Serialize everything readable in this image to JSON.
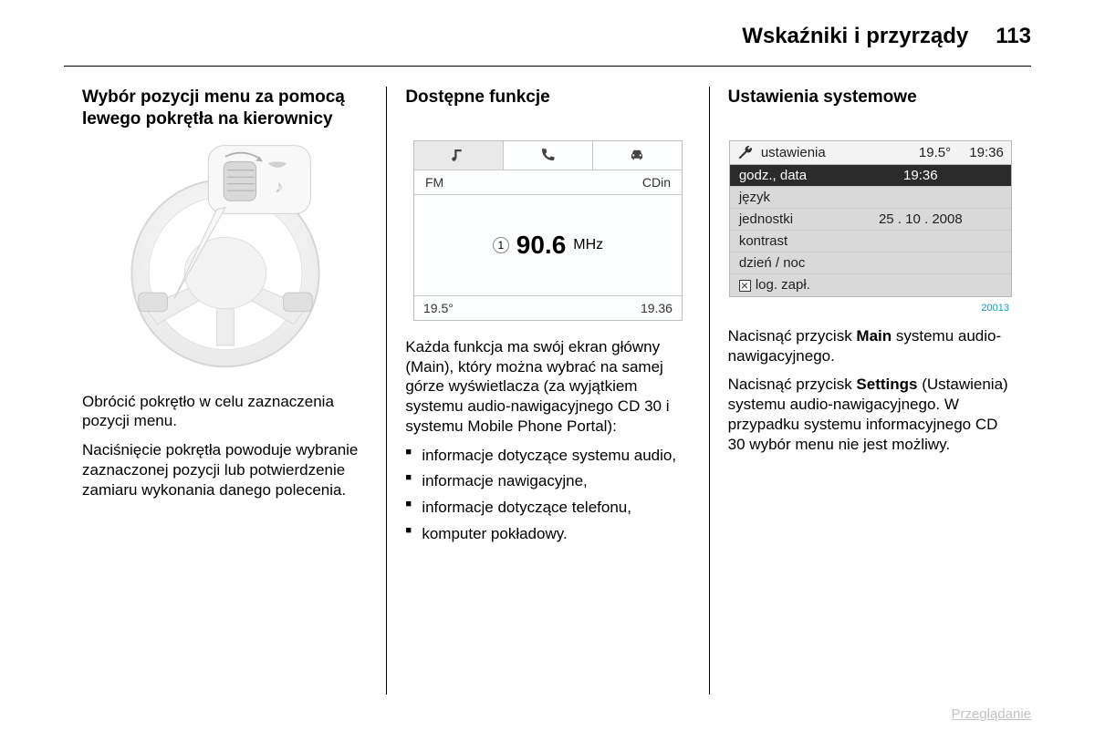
{
  "header": {
    "chapter_title": "Wskaźniki i przyrządy",
    "page_number": "113"
  },
  "col1": {
    "heading": "Wybór pozycji menu za pomocą lewego pokrętła na kierownicy",
    "para1": "Obrócić pokrętło w celu zaznaczenia pozycji menu.",
    "para2": "Naciśnięcie pokrętła powoduje wybranie zaznaczonej pozycji lub potwierdzenie zamiaru wykonania danego polecenia."
  },
  "col2": {
    "heading": "Dostępne funkcje",
    "radio": {
      "band": "FM",
      "source": "CDin",
      "preset": "1",
      "frequency": "90.6",
      "unit": "MHz",
      "temp": "19.5°",
      "clock": "19.36"
    },
    "para1_a": "Każda funkcja ma swój ekran główny (Main), który można wybrać na samej górze wyświetlacza (za wyjątkiem systemu audio-nawigacyjnego CD 30 i systemu Mobile Phone Portal):",
    "bullets": [
      "informacje dotyczące systemu audio,",
      "informacje nawigacyjne,",
      "informacje dotyczące telefonu,",
      "komputer pokładowy."
    ]
  },
  "col3": {
    "heading": "Ustawienia systemowe",
    "settings": {
      "title": "ustawienia",
      "temp": "19.5°",
      "clock": "19:36",
      "rows": [
        {
          "label": "godz., data",
          "value": "19:36",
          "selected": true
        },
        {
          "label": "język",
          "value": ""
        },
        {
          "label": "jednostki",
          "value": "25 . 10 . 2008"
        },
        {
          "label": "kontrast",
          "value": ""
        },
        {
          "label": "dzień / noc",
          "value": ""
        },
        {
          "label": "log. zapł.",
          "value": "",
          "checkbox": true
        }
      ],
      "image_ref": "20013"
    },
    "para1_pre": "Nacisnąć przycisk ",
    "para1_bold": "Main",
    "para1_post": " systemu audio-nawigacyjnego.",
    "para2_pre": "Nacisnąć przycisk ",
    "para2_bold": "Settings",
    "para2_post": " (Ustawienia) systemu audio-nawigacyjnego. W przypadku systemu informacyjnego CD 30 wybór menu nie jest możliwy."
  },
  "footer_link": "Przeglądanie"
}
